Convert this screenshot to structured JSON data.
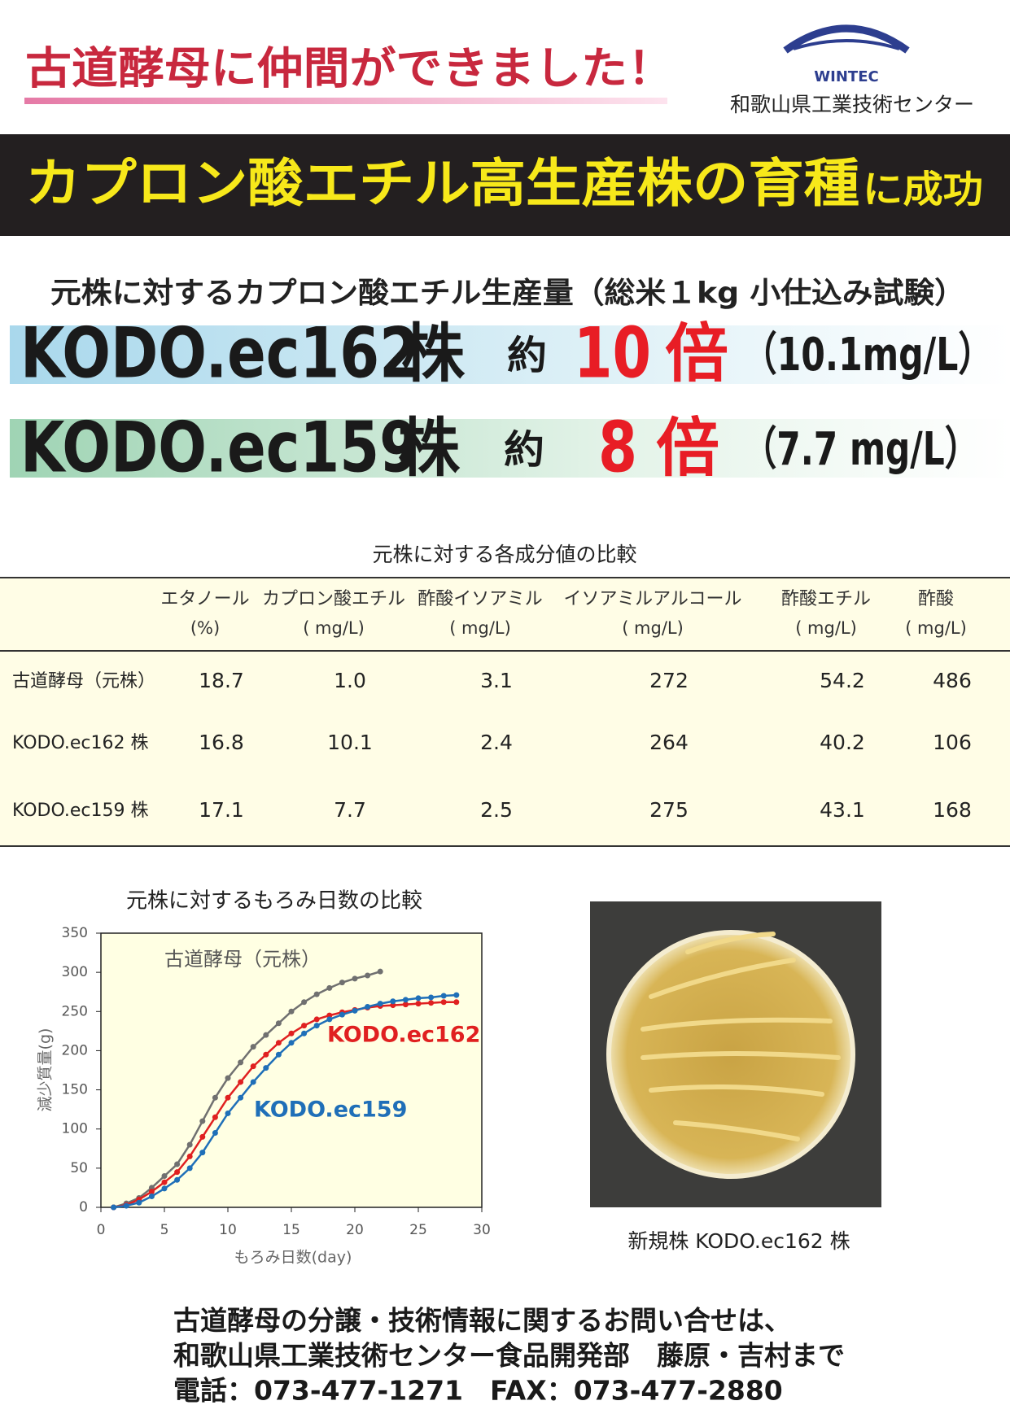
{
  "header": {
    "title": "古道酵母に仲間ができました！",
    "logo": "WINTEC",
    "organization": "和歌山県工業技術センター"
  },
  "banner": {
    "main": "カプロン酸エチル高生産株の育種",
    "suffix": "に成功"
  },
  "summary": {
    "title": "元株に対するカプロン酸エチル生産量（総米１kg 小仕込み試験）",
    "rows": [
      {
        "strain": "KODO.ec162",
        "unit_word": "株",
        "about": "約",
        "ratio": "10",
        "times": "倍",
        "amount": "（10.1mg/L）"
      },
      {
        "strain": "KODO.ec159",
        "unit_word": "株",
        "about": "約",
        "ratio": "8",
        "times": "倍",
        "amount": "（7.7 mg/L）"
      }
    ]
  },
  "table": {
    "caption": "元株に対する各成分値の比較",
    "columns": [
      {
        "name": "エタノール",
        "unit": "(%)"
      },
      {
        "name": "カプロン酸エチル",
        "unit": "( mg/L)"
      },
      {
        "name": "酢酸イソアミル",
        "unit": "( mg/L)"
      },
      {
        "name": "イソアミルアルコール",
        "unit": "( mg/L)"
      },
      {
        "name": "酢酸エチル",
        "unit": "( mg/L)"
      },
      {
        "name": "酢酸",
        "unit": "( mg/L)"
      }
    ],
    "rows": [
      [
        "古道酵母（元株）",
        "18.7",
        "1.0",
        "3.1",
        "272",
        "54.2",
        "486"
      ],
      [
        "KODO.ec162 株",
        "16.8",
        "10.1",
        "2.4",
        "264",
        "40.2",
        "106"
      ],
      [
        "KODO.ec159 株",
        "17.1",
        "7.7",
        "2.5",
        "275",
        "43.1",
        "168"
      ]
    ]
  },
  "chart_data": {
    "type": "line",
    "title": "元株に対するもろみ日数の比較",
    "x_label": "もろみ日数(day)",
    "y_label": "減少質量(g)",
    "xlim": [
      0,
      30
    ],
    "xticks": [
      0,
      5,
      10,
      15,
      20,
      25,
      30
    ],
    "ylim": [
      0,
      350
    ],
    "yticks": [
      0,
      50,
      100,
      150,
      200,
      250,
      300,
      350
    ],
    "series": [
      {
        "name": "古道酵母（元株）",
        "color": "#707070",
        "x": [
          1,
          2,
          3,
          4,
          5,
          6,
          7,
          8,
          9,
          10,
          11,
          12,
          13,
          14,
          15,
          16,
          17,
          18,
          19,
          20,
          21,
          22
        ],
        "values": [
          0,
          5,
          12,
          25,
          40,
          55,
          80,
          110,
          140,
          165,
          185,
          205,
          220,
          235,
          250,
          262,
          272,
          280,
          287,
          292,
          296,
          301
        ]
      },
      {
        "name": "KODO.ec162",
        "color": "#e02020",
        "x": [
          1,
          2,
          3,
          4,
          5,
          6,
          7,
          8,
          9,
          10,
          11,
          12,
          13,
          14,
          15,
          16,
          17,
          18,
          19,
          20,
          21,
          22,
          23,
          24,
          25,
          26,
          27,
          28
        ],
        "values": [
          0,
          3,
          10,
          20,
          32,
          45,
          65,
          90,
          115,
          140,
          160,
          180,
          195,
          210,
          222,
          232,
          240,
          245,
          249,
          252,
          255,
          257,
          258,
          259,
          260,
          261,
          262,
          262
        ]
      },
      {
        "name": "KODO.ec159",
        "color": "#1f6fb8",
        "x": [
          1,
          2,
          3,
          4,
          5,
          6,
          7,
          8,
          9,
          10,
          11,
          12,
          13,
          14,
          15,
          16,
          17,
          18,
          19,
          20,
          21,
          22,
          23,
          24,
          25,
          26,
          27,
          28
        ],
        "values": [
          0,
          2,
          6,
          14,
          24,
          35,
          50,
          70,
          95,
          120,
          140,
          160,
          178,
          195,
          210,
          222,
          232,
          240,
          246,
          251,
          256,
          260,
          263,
          265,
          267,
          268,
          270,
          271
        ]
      }
    ]
  },
  "photo": {
    "caption": "新規株 KODO.ec162 株"
  },
  "footer": {
    "lines": [
      "古道酵母の分譲・技術情報に関するお問い合せは、",
      "和歌山県工業技術センター食品開発部　藤原・吉村まで",
      "電話：073-477-1271　FAX：073-477-2880"
    ]
  }
}
